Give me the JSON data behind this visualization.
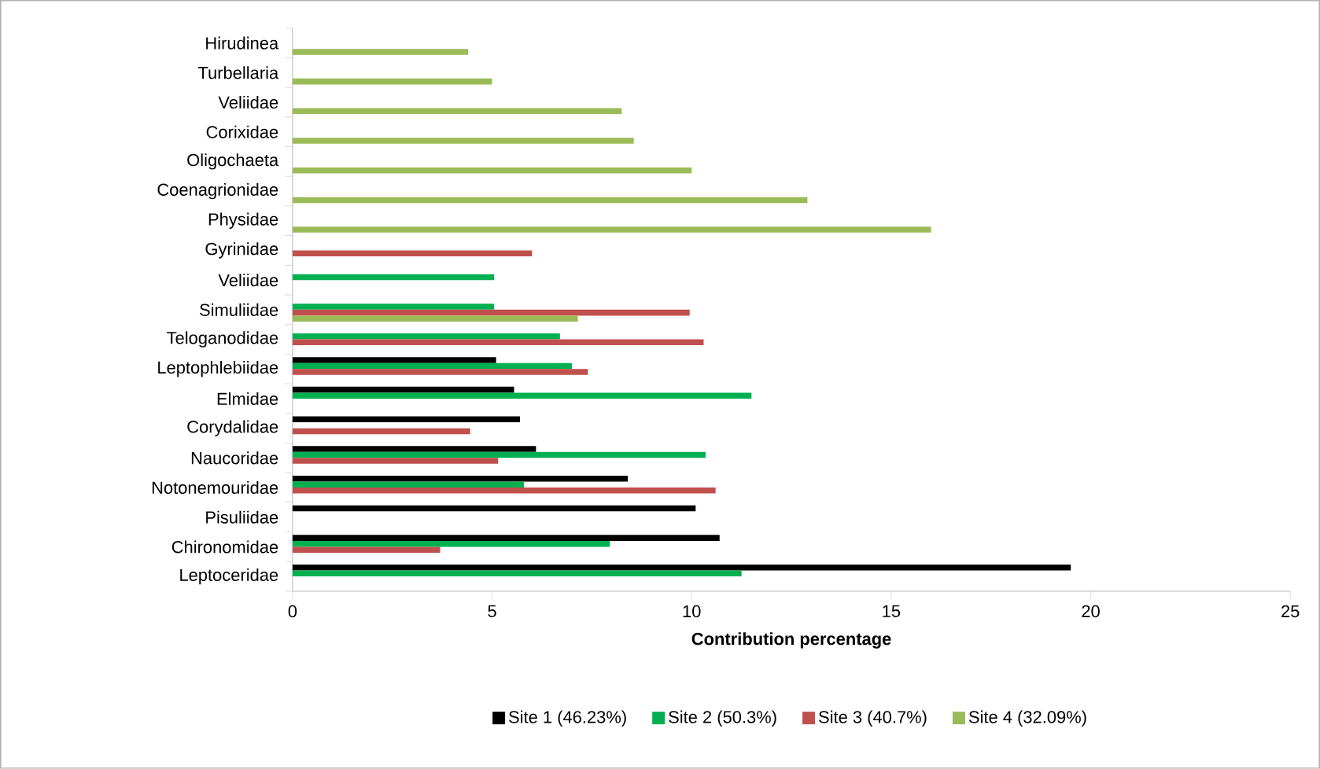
{
  "chart_data": {
    "type": "bar",
    "orientation": "horizontal",
    "xlabel": "Contribution percentage",
    "categories": [
      "Hirudinea",
      "Turbellaria",
      "Veliidae",
      "Corixidae",
      "Oligochaeta",
      "Coenagrionidae",
      "Physidae",
      "Gyrinidae",
      "Veliidae",
      "Simuliidae",
      "Teloganodidae",
      "Leptophlebiidae",
      "Elmidae",
      "Corydalidae",
      "Naucoridae",
      "Notonemouridae",
      "Pisuliidae",
      "Chironomidae",
      "Leptoceridae"
    ],
    "series": [
      {
        "name": "Site 1 (46.23%)",
        "color": "#000000",
        "values": [
          null,
          null,
          null,
          null,
          null,
          null,
          null,
          null,
          null,
          null,
          null,
          5.1,
          5.55,
          5.7,
          6.1,
          8.4,
          10.1,
          10.7,
          19.5
        ]
      },
      {
        "name": "Site 2 (50.3%)",
        "color": "#00b050",
        "values": [
          null,
          null,
          null,
          null,
          null,
          null,
          null,
          null,
          5.05,
          5.05,
          6.7,
          7.0,
          11.5,
          null,
          10.35,
          5.8,
          null,
          7.95,
          11.25
        ]
      },
      {
        "name": "Site 3 (40.7%)",
        "color": "#c0504d",
        "values": [
          null,
          null,
          null,
          null,
          null,
          null,
          null,
          6.0,
          null,
          9.95,
          10.3,
          7.4,
          null,
          4.45,
          5.15,
          10.6,
          null,
          3.7,
          null
        ]
      },
      {
        "name": "Site 4 (32.09%)",
        "color": "#9bbb59",
        "values": [
          4.4,
          5.0,
          8.25,
          8.55,
          10.0,
          12.9,
          16.0,
          null,
          null,
          7.15,
          null,
          null,
          null,
          null,
          null,
          null,
          null,
          null,
          null
        ]
      }
    ],
    "xlim": [
      0,
      25
    ],
    "xticks": [
      0,
      5,
      10,
      15,
      20,
      25
    ],
    "legend": "bottom"
  }
}
